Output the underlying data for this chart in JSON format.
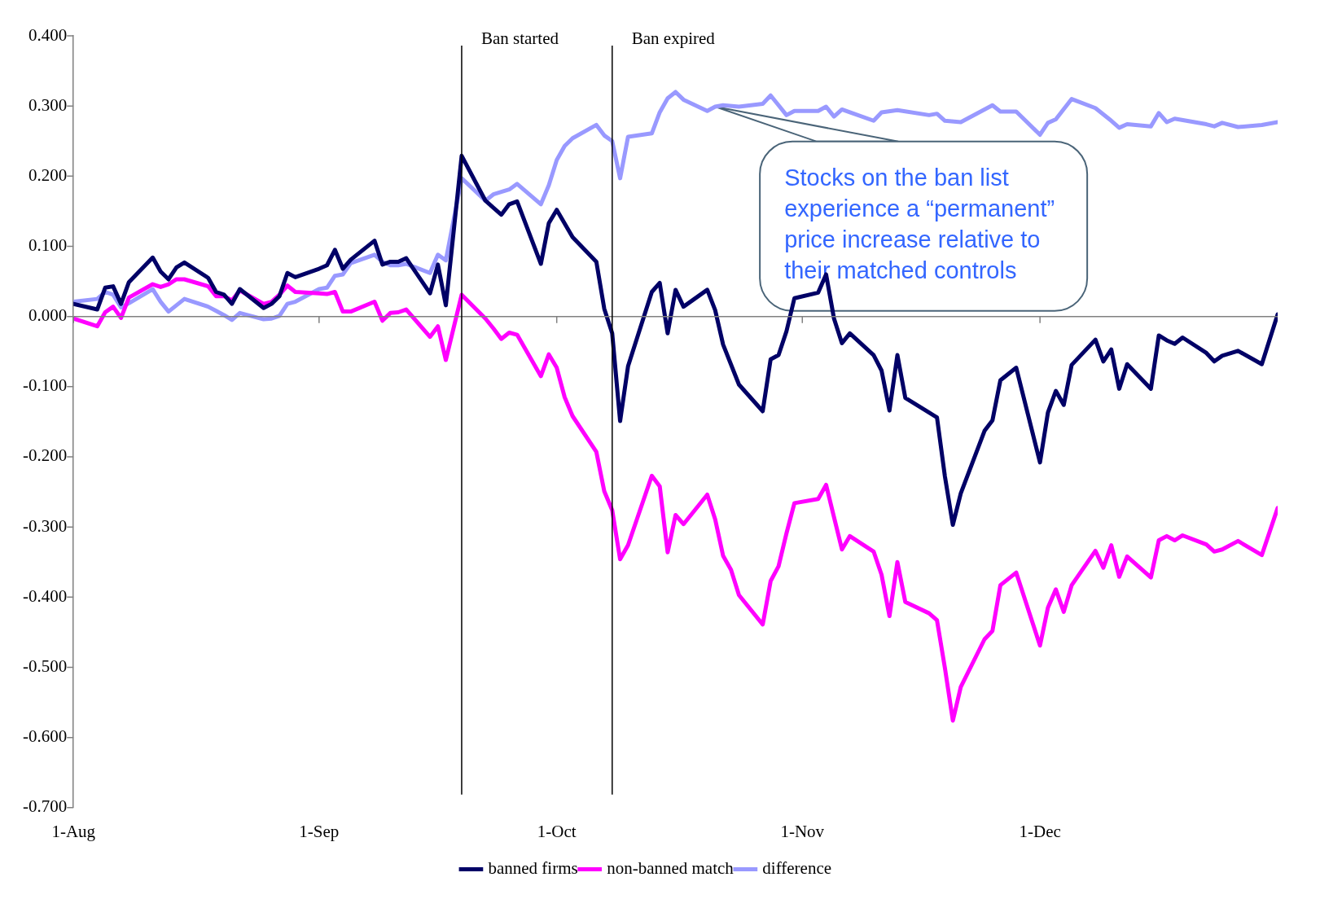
{
  "chart_data": {
    "type": "line",
    "xlim": [
      "--08-01",
      "--12-31"
    ],
    "xticks": [
      {
        "value": "--08-01",
        "label": "1-Aug"
      },
      {
        "value": "--09-01",
        "label": "1-Sep"
      },
      {
        "value": "--10-01",
        "label": "1-Oct"
      },
      {
        "value": "--11-01",
        "label": "1-Nov"
      },
      {
        "value": "--12-01",
        "label": "1-Dec"
      }
    ],
    "ylim": [
      -0.7,
      0.4
    ],
    "yticks": [
      {
        "value": 0.4,
        "label": "0.400"
      },
      {
        "value": 0.3,
        "label": "0.300"
      },
      {
        "value": 0.2,
        "label": "0.200"
      },
      {
        "value": 0.1,
        "label": "0.100"
      },
      {
        "value": 0,
        "label": "0.000"
      },
      {
        "value": -0.1,
        "label": "-0.100"
      },
      {
        "value": -0.2,
        "label": "-0.200"
      },
      {
        "value": -0.3,
        "label": "-0.300"
      },
      {
        "value": -0.4,
        "label": "-0.400"
      },
      {
        "value": -0.5,
        "label": "-0.500"
      },
      {
        "value": -0.6,
        "label": "-0.600"
      },
      {
        "value": -0.7,
        "label": "-0.700"
      }
    ],
    "grid": false,
    "legend": "bottom",
    "marker": "none",
    "line_style": "solid",
    "ref_lines": [
      {
        "axis": "y",
        "value": 0,
        "color": "#808080"
      },
      {
        "axis": "x",
        "value": "--09-19",
        "label": "Ban started",
        "color": "#000000"
      },
      {
        "axis": "x",
        "value": "--10-08",
        "label": "Ban expired",
        "color": "#000000"
      }
    ],
    "annotations": [
      {
        "text": "Stocks on the ban list experience a “permanent” price increase relative to their matched controls",
        "x": "--10-21",
        "y": 0.299
      }
    ],
    "series": [
      {
        "name": "banned firms",
        "color": "#000066",
        "x": [
          "--08-01",
          "--08-04",
          "--08-05",
          "--08-06",
          "--08-07",
          "--08-08",
          "--08-11",
          "--08-12",
          "--08-13",
          "--08-14",
          "--08-15",
          "--08-18",
          "--08-19",
          "--08-20",
          "--08-21",
          "--08-22",
          "--08-25",
          "--08-26",
          "--08-27",
          "--08-28",
          "--08-29",
          "--09-01",
          "--09-02",
          "--09-03",
          "--09-04",
          "--09-05",
          "--09-08",
          "--09-09",
          "--09-10",
          "--09-11",
          "--09-12",
          "--09-15",
          "--09-16",
          "--09-17",
          "--09-19",
          "--09-22",
          "--09-24",
          "--09-25",
          "--09-26",
          "--09-29",
          "--09-30",
          "--10-01",
          "--10-03",
          "--10-06",
          "--10-07",
          "--10-08",
          "--10-09",
          "--10-10",
          "--10-13",
          "--10-14",
          "--10-15",
          "--10-16",
          "--10-17",
          "--10-20",
          "--10-21",
          "--10-22",
          "--10-24",
          "--10-27",
          "--10-28",
          "--10-29",
          "--10-30",
          "--10-31",
          "--11-03",
          "--11-04",
          "--11-05",
          "--11-06",
          "--11-07",
          "--11-10",
          "--11-11",
          "--11-12",
          "--11-13",
          "--11-14",
          "--11-17",
          "--11-18",
          "--11-19",
          "--11-20",
          "--11-21",
          "--11-24",
          "--11-25",
          "--11-26",
          "--11-28",
          "--12-01",
          "--12-02",
          "--12-03",
          "--12-04",
          "--12-05",
          "--12-08",
          "--12-09",
          "--12-10",
          "--12-11",
          "--12-12",
          "--12-15",
          "--12-16",
          "--12-17",
          "--12-18",
          "--12-19",
          "--12-22",
          "--12-23",
          "--12-24",
          "--12-26",
          "--12-29",
          "--12-31"
        ],
        "values": [
          0.018,
          0.01,
          0.041,
          0.043,
          0.018,
          0.049,
          0.084,
          0.064,
          0.053,
          0.07,
          0.077,
          0.055,
          0.035,
          0.031,
          0.018,
          0.039,
          0.012,
          0.018,
          0.029,
          0.062,
          0.056,
          0.068,
          0.073,
          0.095,
          0.068,
          0.081,
          0.108,
          0.074,
          0.078,
          0.078,
          0.083,
          0.033,
          0.074,
          0.016,
          0.229,
          0.165,
          0.145,
          0.16,
          0.164,
          0.075,
          0.133,
          0.152,
          0.113,
          0.078,
          0.011,
          -0.024,
          -0.149,
          -0.071,
          0.035,
          0.048,
          -0.024,
          0.038,
          0.014,
          0.038,
          0.009,
          -0.04,
          -0.097,
          -0.135,
          -0.061,
          -0.055,
          -0.021,
          0.026,
          0.034,
          0.06,
          -0.003,
          -0.038,
          -0.024,
          -0.055,
          -0.077,
          -0.134,
          -0.055,
          -0.116,
          -0.137,
          -0.144,
          -0.228,
          -0.297,
          -0.252,
          -0.163,
          -0.148,
          -0.091,
          -0.073,
          -0.208,
          -0.137,
          -0.106,
          -0.126,
          -0.069,
          -0.033,
          -0.064,
          -0.047,
          -0.103,
          -0.068,
          -0.103,
          -0.027,
          -0.034,
          -0.039,
          -0.03,
          -0.052,
          -0.064,
          -0.056,
          -0.049,
          -0.068,
          0.003
        ]
      },
      {
        "name": "non-banned match",
        "color": "#ff00ff",
        "x": [
          "--08-01",
          "--08-04",
          "--08-05",
          "--08-06",
          "--08-07",
          "--08-08",
          "--08-11",
          "--08-12",
          "--08-13",
          "--08-14",
          "--08-15",
          "--08-18",
          "--08-19",
          "--08-20",
          "--08-21",
          "--08-22",
          "--08-25",
          "--08-26",
          "--08-27",
          "--08-28",
          "--08-29",
          "--09-01",
          "--09-02",
          "--09-03",
          "--09-04",
          "--09-05",
          "--09-08",
          "--09-09",
          "--09-10",
          "--09-11",
          "--09-12",
          "--09-15",
          "--09-16",
          "--09-17",
          "--09-19",
          "--09-22",
          "--09-23",
          "--09-24",
          "--09-25",
          "--09-26",
          "--09-29",
          "--09-30",
          "--10-01",
          "--10-02",
          "--10-03",
          "--10-06",
          "--10-07",
          "--10-08",
          "--10-09",
          "--10-10",
          "--10-13",
          "--10-14",
          "--10-15",
          "--10-16",
          "--10-17",
          "--10-20",
          "--10-21",
          "--10-22",
          "--10-23",
          "--10-24",
          "--10-27",
          "--10-28",
          "--10-29",
          "--10-30",
          "--10-31",
          "--11-03",
          "--11-04",
          "--11-05",
          "--11-06",
          "--11-07",
          "--11-10",
          "--11-11",
          "--11-12",
          "--11-13",
          "--11-14",
          "--11-17",
          "--11-18",
          "--11-19",
          "--11-20",
          "--11-21",
          "--11-24",
          "--11-25",
          "--11-26",
          "--11-28",
          "--12-01",
          "--12-02",
          "--12-03",
          "--12-04",
          "--12-05",
          "--12-08",
          "--12-09",
          "--12-10",
          "--12-11",
          "--12-12",
          "--12-15",
          "--12-16",
          "--12-17",
          "--12-18",
          "--12-19",
          "--12-22",
          "--12-23",
          "--12-24",
          "--12-26",
          "--12-29",
          "--12-31"
        ],
        "values": [
          -0.003,
          -0.014,
          0.006,
          0.014,
          -0.002,
          0.027,
          0.046,
          0.042,
          0.046,
          0.053,
          0.053,
          0.043,
          0.029,
          0.029,
          0.023,
          0.037,
          0.018,
          0.021,
          0.031,
          0.044,
          0.035,
          0.033,
          0.032,
          0.035,
          0.007,
          0.007,
          0.021,
          -0.006,
          0.005,
          0.006,
          0.01,
          -0.029,
          -0.014,
          -0.062,
          0.031,
          -0.003,
          -0.017,
          -0.032,
          -0.023,
          -0.026,
          -0.085,
          -0.054,
          -0.073,
          -0.115,
          -0.142,
          -0.193,
          -0.249,
          -0.276,
          -0.346,
          -0.326,
          -0.227,
          -0.242,
          -0.336,
          -0.283,
          -0.296,
          -0.254,
          -0.289,
          -0.341,
          -0.361,
          -0.397,
          -0.439,
          -0.377,
          -0.356,
          -0.309,
          -0.266,
          -0.26,
          -0.24,
          -0.286,
          -0.332,
          -0.313,
          -0.335,
          -0.368,
          -0.427,
          -0.35,
          -0.407,
          -0.423,
          -0.433,
          -0.501,
          -0.576,
          -0.528,
          -0.46,
          -0.448,
          -0.383,
          -0.365,
          -0.469,
          -0.415,
          -0.389,
          -0.421,
          -0.383,
          -0.334,
          -0.358,
          -0.326,
          -0.371,
          -0.342,
          -0.372,
          -0.319,
          -0.313,
          -0.319,
          -0.312,
          -0.325,
          -0.335,
          -0.332,
          -0.32,
          -0.34,
          -0.273
        ]
      },
      {
        "name": "difference",
        "color": "#9999ff",
        "x": [
          "--08-01",
          "--08-04",
          "--08-05",
          "--08-06",
          "--08-07",
          "--08-08",
          "--08-11",
          "--08-12",
          "--08-13",
          "--08-14",
          "--08-15",
          "--08-18",
          "--08-19",
          "--08-20",
          "--08-21",
          "--08-22",
          "--08-25",
          "--08-26",
          "--08-27",
          "--08-28",
          "--08-29",
          "--09-01",
          "--09-02",
          "--09-03",
          "--09-04",
          "--09-05",
          "--09-08",
          "--09-09",
          "--09-10",
          "--09-11",
          "--09-12",
          "--09-15",
          "--09-16",
          "--09-17",
          "--09-19",
          "--09-22",
          "--09-23",
          "--09-25",
          "--09-26",
          "--09-29",
          "--09-30",
          "--10-01",
          "--10-02",
          "--10-03",
          "--10-06",
          "--10-07",
          "--10-08",
          "--10-09",
          "--10-10",
          "--10-13",
          "--10-14",
          "--10-15",
          "--10-16",
          "--10-17",
          "--10-20",
          "--10-21",
          "--10-22",
          "--10-24",
          "--10-27",
          "--10-28",
          "--10-29",
          "--10-30",
          "--10-31",
          "--11-03",
          "--11-04",
          "--11-05",
          "--11-06",
          "--11-07",
          "--11-10",
          "--11-11",
          "--11-13",
          "--11-17",
          "--11-18",
          "--11-19",
          "--11-21",
          "--11-25",
          "--11-26",
          "--11-28",
          "--12-01",
          "--12-02",
          "--12-03",
          "--12-05",
          "--12-08",
          "--12-10",
          "--12-11",
          "--12-12",
          "--12-15",
          "--12-16",
          "--12-17",
          "--12-18",
          "--12-22",
          "--12-23",
          "--12-24",
          "--12-26",
          "--12-29",
          "--12-31"
        ],
        "values": [
          0.021,
          0.025,
          0.035,
          0.031,
          0.013,
          0.019,
          0.039,
          0.021,
          0.007,
          0.016,
          0.025,
          0.014,
          0.008,
          0.002,
          -0.005,
          0.005,
          -0.004,
          -0.003,
          0.001,
          0.018,
          0.021,
          0.039,
          0.041,
          0.058,
          0.06,
          0.076,
          0.088,
          0.078,
          0.073,
          0.073,
          0.075,
          0.062,
          0.088,
          0.08,
          0.197,
          0.165,
          0.174,
          0.181,
          0.189,
          0.16,
          0.187,
          0.223,
          0.243,
          0.254,
          0.273,
          0.258,
          0.25,
          0.197,
          0.256,
          0.261,
          0.291,
          0.311,
          0.32,
          0.309,
          0.293,
          0.299,
          0.301,
          0.299,
          0.303,
          0.315,
          0.301,
          0.287,
          0.293,
          0.293,
          0.299,
          0.285,
          0.295,
          0.291,
          0.279,
          0.291,
          0.294,
          0.287,
          0.289,
          0.279,
          0.277,
          0.301,
          0.292,
          0.292,
          0.259,
          0.276,
          0.281,
          0.31,
          0.297,
          0.279,
          0.269,
          0.274,
          0.271,
          0.29,
          0.277,
          0.282,
          0.274,
          0.271,
          0.276,
          0.27,
          0.273,
          0.277
        ]
      }
    ]
  }
}
